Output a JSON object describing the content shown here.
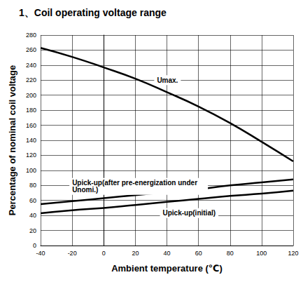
{
  "chart_data": {
    "type": "line",
    "title": "1、Coil operating voltage range",
    "x_label": "Ambient temperature (℃)",
    "y_label": "Percentage of nominal coil voltage",
    "x": [
      -40,
      -20,
      0,
      20,
      40,
      60,
      80,
      100,
      120
    ],
    "series": [
      {
        "name": "Umax.",
        "color": "#000000",
        "values": [
          263,
          251,
          237,
          222,
          204,
          185,
          163,
          138,
          112
        ]
      },
      {
        "name": "Upick-up(after pre-energization under Unomi.)",
        "color": "#000000",
        "values": [
          55,
          59,
          63,
          67,
          71,
          75,
          80,
          84,
          88
        ]
      },
      {
        "name": "Upick-up(initial)",
        "color": "#000000",
        "values": [
          43,
          47,
          50,
          54,
          58,
          62,
          66,
          69,
          73
        ]
      }
    ],
    "xlim": [
      -40,
      120
    ],
    "xticks": [
      -40,
      -20,
      0,
      20,
      40,
      60,
      80,
      100,
      120
    ],
    "ylim": [
      0,
      280
    ],
    "yticks": [
      0,
      20,
      40,
      60,
      80,
      100,
      120,
      140,
      160,
      180,
      200,
      220,
      240,
      260,
      280
    ],
    "grid": true
  }
}
